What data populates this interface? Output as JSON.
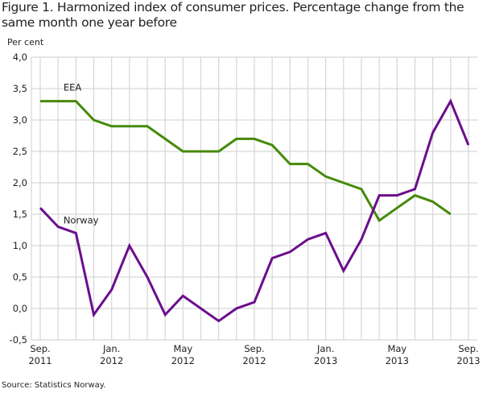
{
  "title": "Figure 1. Harmonized index of consumer prices. Percentage change from the same month one year before",
  "unit_label": "Per cent",
  "source": "Source: Statistics Norway.",
  "chart_data": {
    "type": "line",
    "title": "Figure 1. Harmonized index of consumer prices. Percentage change from the same month one year before",
    "xlabel": "",
    "ylabel": "Per cent",
    "ylim": [
      -0.5,
      4.0
    ],
    "yticks": [
      -0.5,
      0.0,
      0.5,
      1.0,
      1.5,
      2.0,
      2.5,
      3.0,
      3.5,
      4.0
    ],
    "ytick_labels": [
      "-0,5",
      "0,0",
      "0,5",
      "1,0",
      "1,5",
      "2,0",
      "2,5",
      "3,0",
      "3,5",
      "4,0"
    ],
    "grid": true,
    "x": [
      "2011-09",
      "2011-10",
      "2011-11",
      "2011-12",
      "2012-01",
      "2012-02",
      "2012-03",
      "2012-04",
      "2012-05",
      "2012-06",
      "2012-07",
      "2012-08",
      "2012-09",
      "2012-10",
      "2012-11",
      "2012-12",
      "2013-01",
      "2013-02",
      "2013-03",
      "2013-04",
      "2013-05",
      "2013-06",
      "2013-07",
      "2013-08",
      "2013-09"
    ],
    "xtick_labels": [
      {
        "index": 0,
        "line1": "Sep.",
        "line2": "2011"
      },
      {
        "index": 4,
        "line1": "Jan.",
        "line2": "2012"
      },
      {
        "index": 8,
        "line1": "May",
        "line2": "2012"
      },
      {
        "index": 12,
        "line1": "Sep.",
        "line2": "2012"
      },
      {
        "index": 16,
        "line1": "Jan.",
        "line2": "2013"
      },
      {
        "index": 20,
        "line1": "May",
        "line2": "2013"
      },
      {
        "index": 24,
        "line1": "Sep.",
        "line2": "2013"
      }
    ],
    "series": [
      {
        "name": "EEA",
        "color": "#458a0a",
        "label_at": {
          "index": 1.3,
          "value": 3.47
        },
        "values": [
          3.3,
          3.3,
          3.3,
          3.0,
          2.9,
          2.9,
          2.9,
          2.7,
          2.5,
          2.5,
          2.5,
          2.7,
          2.7,
          2.6,
          2.3,
          2.3,
          2.1,
          2.0,
          1.9,
          1.4,
          1.6,
          1.8,
          1.7,
          1.5,
          null
        ]
      },
      {
        "name": "Norway",
        "color": "#6b0e8c",
        "label_at": {
          "index": 1.3,
          "value": 1.35
        },
        "values": [
          1.6,
          1.3,
          1.2,
          -0.1,
          0.3,
          1.0,
          0.5,
          -0.1,
          0.2,
          0.0,
          -0.2,
          0.0,
          0.1,
          0.8,
          0.9,
          1.1,
          1.2,
          0.6,
          1.1,
          1.8,
          1.8,
          1.9,
          2.8,
          3.3,
          2.6
        ]
      }
    ],
    "legend": "inline-labels"
  }
}
